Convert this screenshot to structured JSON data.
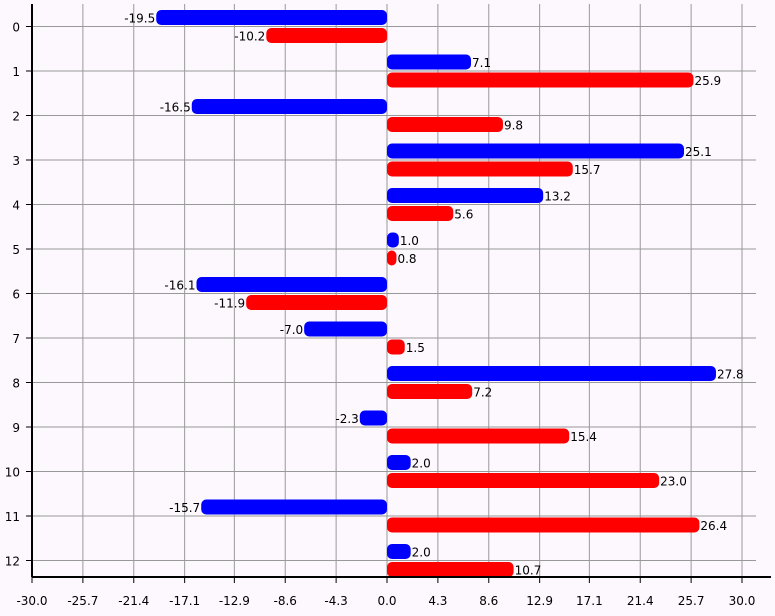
{
  "chart_data": {
    "type": "bar",
    "orientation": "horizontal",
    "title": "",
    "xlabel": "",
    "ylabel": "",
    "categories": [
      "0",
      "1",
      "2",
      "3",
      "4",
      "5",
      "6",
      "7",
      "8",
      "9",
      "10",
      "11",
      "12"
    ],
    "series": [
      {
        "color": "#0000ff",
        "values": [
          -19.5,
          7.1,
          -16.5,
          25.1,
          13.2,
          1.0,
          -16.1,
          -7.0,
          27.8,
          -2.3,
          2.0,
          -15.7,
          2.0
        ]
      },
      {
        "color": "#ff0000",
        "values": [
          -10.2,
          25.9,
          9.8,
          15.7,
          5.6,
          0.8,
          -11.9,
          1.5,
          7.2,
          15.4,
          23.0,
          26.4,
          10.7
        ]
      }
    ],
    "value_labels": [
      [
        "-19.5",
        "7.1",
        "-16.5",
        "25.1",
        "13.2",
        "1.0",
        "-16.1",
        "-7.0",
        "27.8",
        "-2.3",
        "2.0",
        "-15.7",
        "2.0"
      ],
      [
        "-10.2",
        "25.9",
        "9.8",
        "15.7",
        "5.6",
        "0.8",
        "-11.9",
        "1.5",
        "7.2",
        "15.4",
        "23.0",
        "26.4",
        "10.7"
      ]
    ],
    "xlim": [
      -30.0,
      30.0
    ],
    "xticks": [
      -30.0,
      -25.7,
      -21.4,
      -17.1,
      -12.9,
      -8.6,
      -4.3,
      0.0,
      4.3,
      8.6,
      12.9,
      17.1,
      21.4,
      25.7,
      30.0
    ],
    "xtick_labels": [
      "-30.0",
      "-25.7",
      "-21.4",
      "-17.1",
      "-12.9",
      "-8.6",
      "-4.3",
      "0.0",
      "4.3",
      "8.6",
      "12.9",
      "17.1",
      "21.4",
      "25.7",
      "30.0"
    ],
    "grid": true,
    "legend": "none",
    "colors": {
      "background": "#fdf8fd",
      "grid": "#999999",
      "axis": "#000000"
    }
  }
}
